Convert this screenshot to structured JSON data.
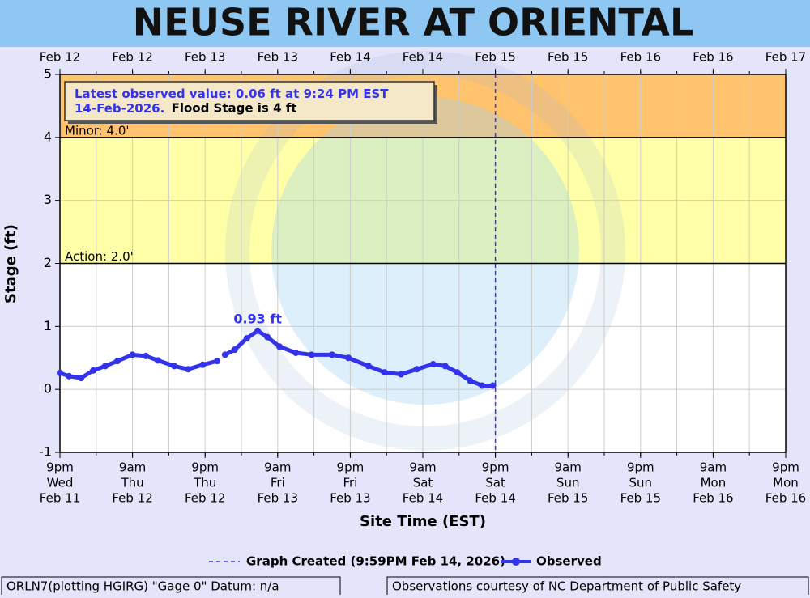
{
  "chart_data": {
    "type": "line",
    "title": "NEUSE RIVER AT ORIENTAL",
    "ylabel": "Stage (ft)",
    "xlabel": "Site Time (EST)",
    "xlim": [
      0,
      120
    ],
    "ylim": [
      -1,
      5
    ],
    "yticks": [
      -1,
      0,
      1,
      2,
      3,
      4,
      5
    ],
    "xminor_step": 6,
    "grid": true,
    "xticks": [
      {
        "value": 0,
        "label": [
          "9pm",
          "Wed",
          "Feb 11"
        ]
      },
      {
        "value": 12,
        "label": [
          "9am",
          "Thu",
          "Feb 12"
        ]
      },
      {
        "value": 24,
        "label": [
          "9pm",
          "Thu",
          "Feb 12"
        ]
      },
      {
        "value": 36,
        "label": [
          "9am",
          "Fri",
          "Feb 13"
        ]
      },
      {
        "value": 48,
        "label": [
          "9pm",
          "Fri",
          "Feb 13"
        ]
      },
      {
        "value": 60,
        "label": [
          "9am",
          "Sat",
          "Feb 14"
        ]
      },
      {
        "value": 72,
        "label": [
          "9pm",
          "Sat",
          "Feb 14"
        ]
      },
      {
        "value": 84,
        "label": [
          "9am",
          "Sun",
          "Feb 15"
        ]
      },
      {
        "value": 96,
        "label": [
          "9pm",
          "Sun",
          "Feb 15"
        ]
      },
      {
        "value": 108,
        "label": [
          "9am",
          "Mon",
          "Feb 16"
        ]
      },
      {
        "value": 120,
        "label": [
          "9pm",
          "Mon",
          "Feb 16"
        ]
      }
    ],
    "x2ticks": [
      {
        "value": 0,
        "label": "Feb 12"
      },
      {
        "value": 12,
        "label": "Feb 12"
      },
      {
        "value": 24,
        "label": "Feb 13"
      },
      {
        "value": 36,
        "label": "Feb 13"
      },
      {
        "value": 48,
        "label": "Feb 14"
      },
      {
        "value": 60,
        "label": "Feb 14"
      },
      {
        "value": 72,
        "label": "Feb 15"
      },
      {
        "value": 84,
        "label": "Feb 15"
      },
      {
        "value": 96,
        "label": "Feb 16"
      },
      {
        "value": 108,
        "label": "Feb 16"
      },
      {
        "value": 120,
        "label": "Feb 17"
      }
    ],
    "thresholds": [
      {
        "value": 2,
        "label": "Action: 2.0'",
        "color": "#ffffa8"
      },
      {
        "value": 4,
        "label": "Minor: 4.0'",
        "color": "#ffc36e"
      }
    ],
    "x": [
      0,
      1.5,
      3.5,
      5.5,
      7.5,
      9.5,
      12,
      14.2,
      16.2,
      18.9,
      21.2,
      23.6,
      26,
      26.7,
      27.3,
      28.9,
      30.9,
      32.7,
      34.3,
      36.3,
      39,
      41.6,
      45,
      47.7,
      51,
      53.7,
      56.4,
      59,
      61.7,
      63.7,
      65.7,
      67.8,
      69.8,
      71.6
    ],
    "series": [
      {
        "name": "Observed",
        "color": "#3333ee",
        "values": [
          0.26,
          0.21,
          0.18,
          0.3,
          0.37,
          0.45,
          0.55,
          0.53,
          0.46,
          0.37,
          0.32,
          0.39,
          0.45,
          null,
          0.55,
          0.63,
          0.81,
          0.93,
          0.83,
          0.68,
          0.58,
          0.55,
          0.55,
          0.5,
          0.37,
          0.27,
          0.24,
          0.32,
          0.4,
          0.37,
          0.27,
          0.14,
          0.06,
          0.06
        ]
      }
    ],
    "peak_label": {
      "x": 32.7,
      "value": 0.93,
      "label": "0.93 ft"
    },
    "created": {
      "x": 72,
      "name": "Graph Created (9:59PM Feb 14, 2026)",
      "color": "#3333ee"
    },
    "info_box": {
      "observed": "Latest observed value: 0.06 ft at 9:24 PM EST 14-Feb-2026.",
      "flood_stage": "Flood Stage is 4 ft"
    },
    "footer_left": "ORLN7(plotting HGIRG) \"Gage 0\" Datum: n/a",
    "footer_right": "Observations courtesy of NC Department of Public Safety"
  }
}
